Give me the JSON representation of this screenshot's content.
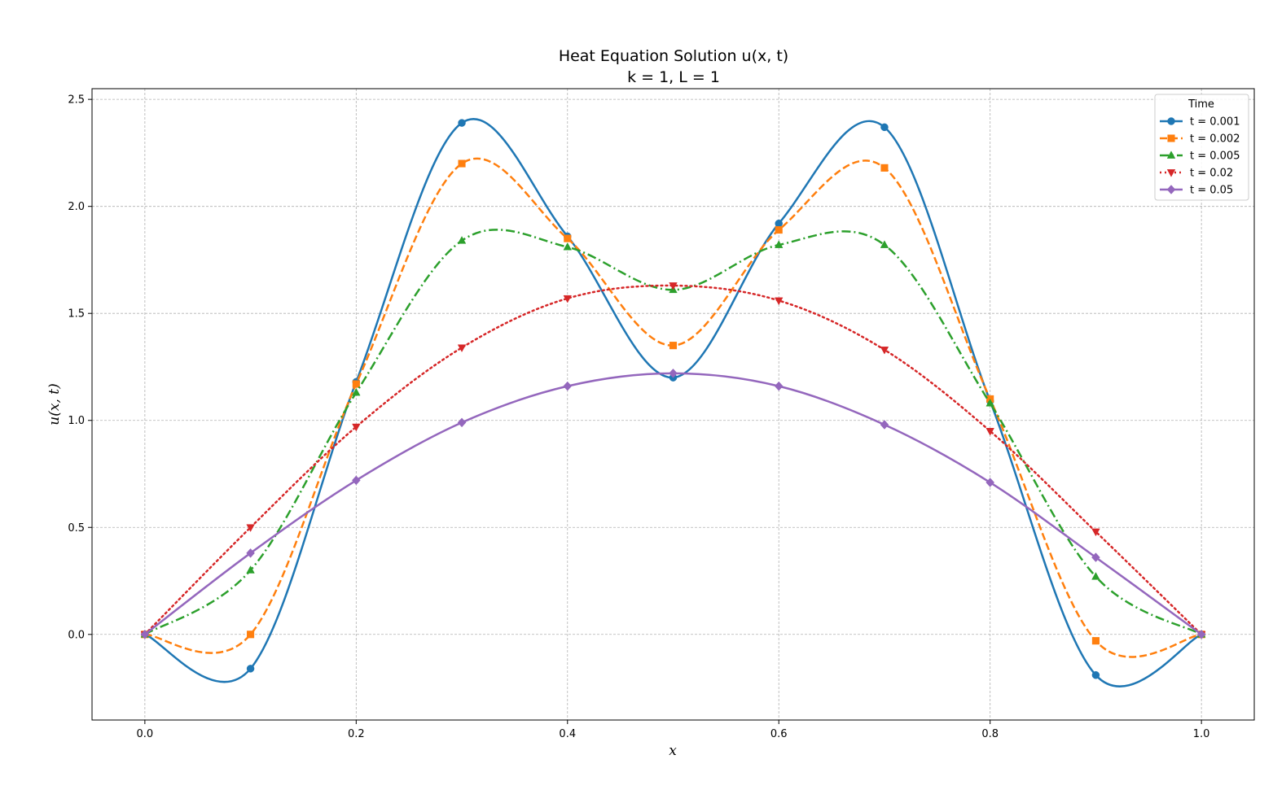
{
  "chart_data": {
    "type": "line",
    "title_line1": "Heat Equation Solution u(x, t)",
    "title_line2": "k = 1, L = 1",
    "xlabel": "x",
    "ylabel": "u(x, t)",
    "xlim": [
      -0.05,
      1.05
    ],
    "ylim": [
      -0.4,
      2.55
    ],
    "x_ticks": [
      "0.0",
      "0.2",
      "0.4",
      "0.6",
      "0.8",
      "1.0"
    ],
    "y_ticks": [
      "0.0",
      "0.5",
      "1.0",
      "1.5",
      "2.0",
      "2.5"
    ],
    "grid": true,
    "legend": {
      "title": "Time",
      "placement": "top-right"
    },
    "x": [
      0.0,
      0.1,
      0.2,
      0.3,
      0.4,
      0.5,
      0.6,
      0.7,
      0.8,
      0.9,
      1.0
    ],
    "series": [
      {
        "name": "t = 0.001",
        "color": "#1f77b4",
        "marker": "circle",
        "linestyle": "solid",
        "values": [
          0.0,
          -0.16,
          1.18,
          2.39,
          1.86,
          1.2,
          1.92,
          2.37,
          1.09,
          -0.19,
          0.0
        ]
      },
      {
        "name": "t = 0.002",
        "color": "#ff7f0e",
        "marker": "square",
        "linestyle": "dashed",
        "values": [
          0.0,
          0.0,
          1.17,
          2.2,
          1.85,
          1.35,
          1.89,
          2.18,
          1.1,
          -0.03,
          0.0
        ]
      },
      {
        "name": "t = 0.005",
        "color": "#2ca02c",
        "marker": "triangle-up",
        "linestyle": "dashdot",
        "values": [
          0.0,
          0.3,
          1.13,
          1.84,
          1.81,
          1.61,
          1.82,
          1.82,
          1.08,
          0.27,
          0.0
        ]
      },
      {
        "name": "t = 0.02",
        "color": "#d62728",
        "marker": "triangle-down",
        "linestyle": "dotted",
        "values": [
          0.0,
          0.5,
          0.97,
          1.34,
          1.57,
          1.63,
          1.56,
          1.33,
          0.95,
          0.48,
          0.0
        ]
      },
      {
        "name": "t = 0.05",
        "color": "#9467bd",
        "marker": "diamond",
        "linestyle": "solid",
        "values": [
          0.0,
          0.38,
          0.72,
          0.99,
          1.16,
          1.22,
          1.16,
          0.98,
          0.71,
          0.36,
          0.0
        ]
      }
    ]
  }
}
